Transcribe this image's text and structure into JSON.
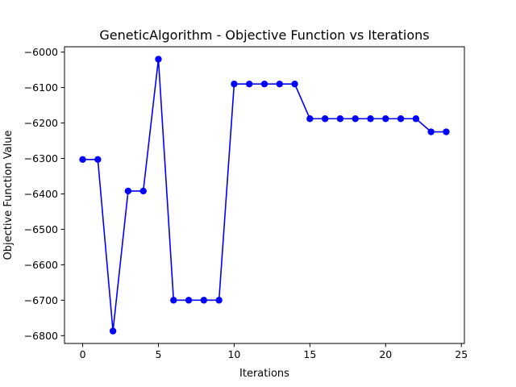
{
  "chart_data": {
    "type": "line",
    "title": "GeneticAlgorithm - Objective Function vs Iterations",
    "xlabel": "Iterations",
    "ylabel": "Objective Function Value",
    "x": [
      0,
      1,
      2,
      3,
      4,
      5,
      6,
      7,
      8,
      9,
      10,
      11,
      12,
      13,
      14,
      15,
      16,
      17,
      18,
      19,
      20,
      21,
      22,
      23,
      24
    ],
    "y": [
      -6303,
      -6303,
      -6787,
      -6392,
      -6392,
      -6020,
      -6700,
      -6700,
      -6700,
      -6700,
      -6090,
      -6090,
      -6090,
      -6090,
      -6090,
      -6188,
      -6188,
      -6188,
      -6188,
      -6188,
      -6188,
      -6188,
      -6188,
      -6225,
      -6225
    ],
    "xlim": [
      -1.2,
      25.2
    ],
    "ylim": [
      -6822,
      -5985
    ],
    "xticks": [
      0,
      5,
      10,
      15,
      20,
      25
    ],
    "yticks": [
      -6800,
      -6700,
      -6600,
      -6500,
      -6400,
      -6300,
      -6200,
      -6100,
      -6000
    ],
    "xtick_labels": [
      "0",
      "5",
      "10",
      "15",
      "20",
      "25"
    ],
    "ytick_labels": [
      "−6800",
      "−6700",
      "−6600",
      "−6500",
      "−6400",
      "−6300",
      "−6200",
      "−6100",
      "−6000"
    ],
    "line_color": "#0000ff",
    "marker": "circle",
    "grid": false,
    "legend": "none"
  }
}
